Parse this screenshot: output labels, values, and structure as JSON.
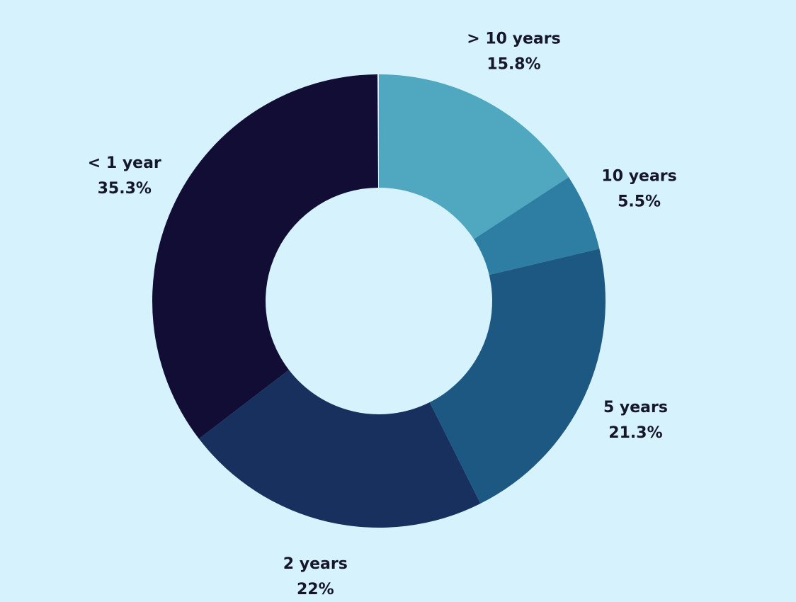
{
  "chart_data": {
    "type": "donut",
    "categories": [
      "> 10 years",
      "10 years",
      "5 years",
      "2 years",
      "< 1 year"
    ],
    "values": [
      15.8,
      5.5,
      21.3,
      22,
      35.3
    ],
    "value_labels": [
      "15.8%",
      "5.5%",
      "21.3%",
      "22%",
      "35.3%"
    ],
    "colors": [
      "#4fa8bf",
      "#2e7ea3",
      "#1d5882",
      "#17305e",
      "#120d35"
    ]
  }
}
